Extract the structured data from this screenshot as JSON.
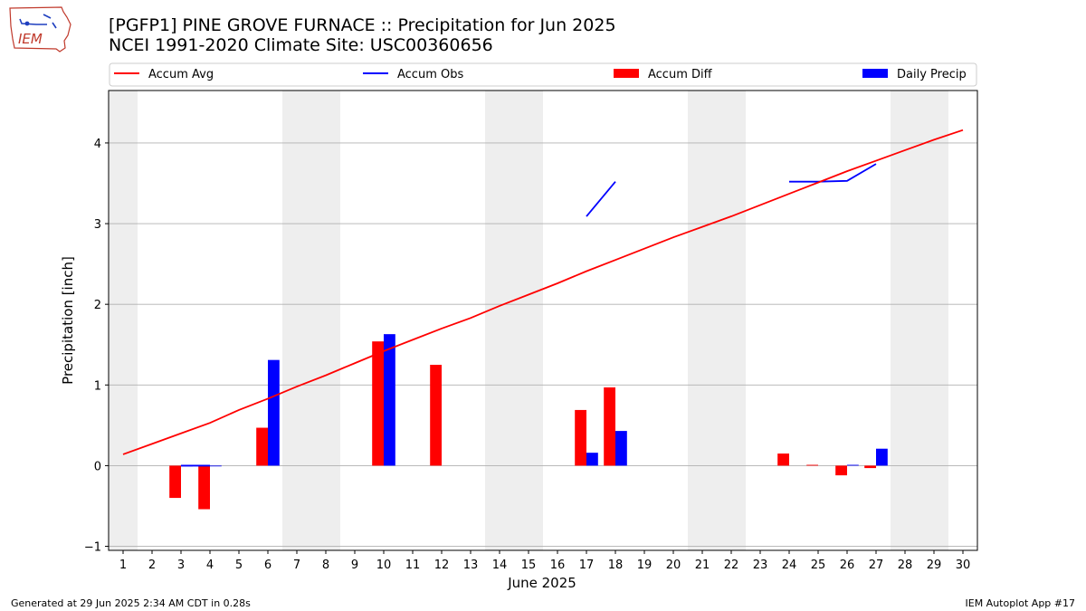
{
  "header": {
    "logo_text": "IEM",
    "title_line1": "[PGFP1] PINE GROVE FURNACE :: Precipitation for Jun 2025",
    "title_line2": "NCEI 1991-2020 Climate Site: USC00360656"
  },
  "footer": {
    "generated": "Generated at 29 Jun 2025 2:34 AM CDT in 0.28s",
    "app": "IEM Autoplot App #17"
  },
  "chart_data": {
    "type": "bar",
    "xlabel": "June 2025",
    "ylabel": "Precipitation [inch]",
    "xlim": [
      0.5,
      30.5
    ],
    "ylim": [
      -1.05,
      4.65
    ],
    "x_ticks": [
      1,
      2,
      3,
      4,
      5,
      6,
      7,
      8,
      9,
      10,
      11,
      12,
      13,
      14,
      15,
      16,
      17,
      18,
      19,
      20,
      21,
      22,
      23,
      24,
      25,
      26,
      27,
      28,
      29,
      30
    ],
    "y_ticks": [
      -1,
      0,
      1,
      2,
      3,
      4
    ],
    "grid": "horizontal",
    "legend_placement": "top",
    "weekend_shading_days": [
      1,
      7,
      8,
      14,
      15,
      21,
      22,
      28,
      29
    ],
    "colors": {
      "accum_avg": "#ff0000",
      "accum_obs": "#0000ff",
      "accum_diff": "#ff0000",
      "daily_precip": "#0000ff",
      "shade": "#eeeeee",
      "grid": "#b0b0b0"
    },
    "legend": [
      {
        "key": "accum_avg",
        "label": "Accum Avg",
        "kind": "line"
      },
      {
        "key": "accum_obs",
        "label": "Accum Obs",
        "kind": "line"
      },
      {
        "key": "accum_diff",
        "label": "Accum Diff",
        "kind": "bar"
      },
      {
        "key": "daily_precip",
        "label": "Daily Precip",
        "kind": "bar"
      }
    ],
    "accum_avg": {
      "x": [
        1,
        2,
        3,
        4,
        5,
        6,
        7,
        8,
        9,
        10,
        11,
        12,
        13,
        14,
        15,
        16,
        17,
        18,
        19,
        20,
        21,
        22,
        23,
        24,
        25,
        26,
        27,
        28,
        29,
        30
      ],
      "y": [
        0.14,
        0.27,
        0.4,
        0.53,
        0.69,
        0.83,
        0.98,
        1.12,
        1.27,
        1.42,
        1.56,
        1.7,
        1.83,
        1.98,
        2.12,
        2.26,
        2.41,
        2.55,
        2.69,
        2.83,
        2.96,
        3.09,
        3.23,
        3.37,
        3.51,
        3.65,
        3.78,
        3.91,
        4.04,
        4.16
      ]
    },
    "accum_obs": [
      {
        "x": [
          3,
          4
        ],
        "y": [
          0.0,
          0.0
        ]
      },
      {
        "x": [
          17,
          18
        ],
        "y": [
          3.09,
          3.52
        ]
      },
      {
        "x": [
          24,
          25,
          26,
          27
        ],
        "y": [
          3.52,
          3.52,
          3.53,
          3.74
        ]
      }
    ],
    "accum_diff": [
      {
        "day": 3,
        "value": -0.4
      },
      {
        "day": 4,
        "value": -0.54
      },
      {
        "day": 6,
        "value": 0.47
      },
      {
        "day": 10,
        "value": 1.54
      },
      {
        "day": 12,
        "value": 1.25
      },
      {
        "day": 17,
        "value": 0.69
      },
      {
        "day": 18,
        "value": 0.97
      },
      {
        "day": 24,
        "value": 0.15
      },
      {
        "day": 25,
        "value": 0.01
      },
      {
        "day": 26,
        "value": -0.12
      },
      {
        "day": 27,
        "value": -0.03
      }
    ],
    "daily_precip": [
      {
        "day": 3,
        "value": 0.0
      },
      {
        "day": 4,
        "value": 0.0
      },
      {
        "day": 6,
        "value": 1.31
      },
      {
        "day": 10,
        "value": 1.63
      },
      {
        "day": 17,
        "value": 0.16
      },
      {
        "day": 18,
        "value": 0.43
      },
      {
        "day": 26,
        "value": 0.01
      },
      {
        "day": 27,
        "value": 0.21
      }
    ]
  }
}
